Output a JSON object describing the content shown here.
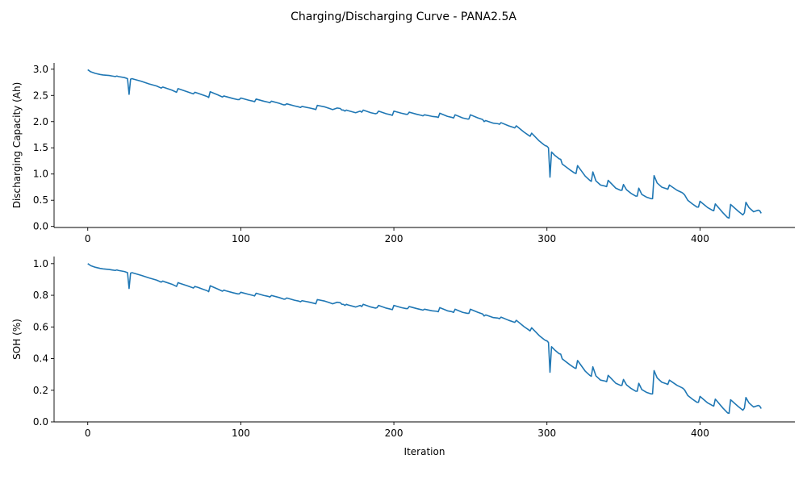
{
  "figure": {
    "suptitle": "Charging/Discharging Curve - PANA2.5A"
  },
  "chart_data": [
    {
      "type": "line",
      "title": "",
      "xlabel": "",
      "ylabel": "Discharging Capacity (Ah)",
      "xlim": [
        -22,
        462
      ],
      "ylim": [
        -0.02,
        3.12
      ],
      "xticks": [
        0,
        100,
        200,
        300,
        400
      ],
      "yticks": [
        0.0,
        0.5,
        1.0,
        1.5,
        2.0,
        2.5,
        3.0
      ],
      "ytick_labels": [
        "0.0",
        "0.5",
        "1.0",
        "1.5",
        "2.0",
        "2.5",
        "3.0"
      ],
      "show_xtick_labels": true,
      "grid": false,
      "line_color": "#1f77b4",
      "series": [
        {
          "x": [
            0,
            2,
            5,
            8,
            10,
            14,
            16,
            18,
            19,
            20,
            24,
            26,
            27,
            28,
            29,
            30,
            35,
            40,
            45,
            48,
            49,
            50,
            55,
            58,
            59,
            60,
            65,
            69,
            70,
            72,
            75,
            78,
            79,
            80,
            85,
            88,
            89,
            90,
            95,
            98,
            99,
            100,
            105,
            108,
            109,
            110,
            115,
            118,
            119,
            120,
            125,
            128,
            129,
            130,
            135,
            138,
            139,
            140,
            145,
            148,
            149,
            150,
            155,
            158,
            160,
            163,
            165,
            166,
            167,
            168,
            169,
            170,
            175,
            178,
            179,
            180,
            185,
            188,
            189,
            190,
            195,
            198,
            199,
            200,
            205,
            208,
            209,
            210,
            215,
            218,
            219,
            220,
            225,
            228,
            229,
            230,
            235,
            238,
            239,
            240,
            245,
            248,
            249,
            250,
            255,
            258,
            259,
            260,
            265,
            268,
            269,
            270,
            275,
            278,
            279,
            280,
            285,
            288,
            289,
            290,
            295,
            298,
            299,
            300,
            301,
            302,
            303,
            305,
            308,
            309,
            310,
            315,
            318,
            319,
            320,
            325,
            328,
            329,
            330,
            332,
            335,
            338,
            339,
            340,
            345,
            348,
            349,
            350,
            352,
            355,
            358,
            359,
            360,
            362,
            365,
            368,
            369,
            370,
            372,
            375,
            378,
            379,
            380,
            385,
            388,
            389,
            390,
            392,
            395,
            398,
            399,
            400,
            405,
            408,
            409,
            410,
            415,
            418,
            419,
            420,
            425,
            428,
            429,
            430,
            432,
            435,
            438,
            439,
            440
          ],
          "y": [
            2.99,
            2.95,
            2.92,
            2.9,
            2.89,
            2.88,
            2.87,
            2.86,
            2.87,
            2.86,
            2.84,
            2.82,
            2.52,
            2.81,
            2.82,
            2.81,
            2.77,
            2.72,
            2.68,
            2.64,
            2.66,
            2.65,
            2.6,
            2.56,
            2.63,
            2.62,
            2.57,
            2.53,
            2.56,
            2.54,
            2.51,
            2.48,
            2.46,
            2.57,
            2.51,
            2.47,
            2.49,
            2.48,
            2.44,
            2.42,
            2.42,
            2.45,
            2.41,
            2.39,
            2.38,
            2.43,
            2.39,
            2.37,
            2.36,
            2.39,
            2.35,
            2.32,
            2.32,
            2.34,
            2.3,
            2.28,
            2.27,
            2.29,
            2.26,
            2.24,
            2.23,
            2.31,
            2.28,
            2.25,
            2.23,
            2.26,
            2.25,
            2.22,
            2.22,
            2.2,
            2.22,
            2.21,
            2.17,
            2.2,
            2.18,
            2.22,
            2.17,
            2.15,
            2.16,
            2.2,
            2.15,
            2.13,
            2.12,
            2.2,
            2.16,
            2.14,
            2.14,
            2.18,
            2.14,
            2.12,
            2.11,
            2.13,
            2.1,
            2.09,
            2.08,
            2.16,
            2.1,
            2.08,
            2.07,
            2.13,
            2.07,
            2.05,
            2.05,
            2.13,
            2.07,
            2.04,
            2.0,
            2.02,
            1.97,
            1.96,
            1.95,
            1.98,
            1.92,
            1.89,
            1.88,
            1.92,
            1.8,
            1.74,
            1.72,
            1.78,
            1.63,
            1.56,
            1.54,
            1.53,
            1.5,
            0.94,
            1.42,
            1.36,
            1.29,
            1.28,
            1.19,
            1.08,
            1.02,
            1.01,
            1.16,
            0.96,
            0.88,
            0.86,
            1.04,
            0.87,
            0.79,
            0.77,
            0.76,
            0.88,
            0.73,
            0.69,
            0.69,
            0.8,
            0.7,
            0.63,
            0.58,
            0.58,
            0.73,
            0.61,
            0.56,
            0.53,
            0.53,
            0.97,
            0.83,
            0.75,
            0.72,
            0.71,
            0.79,
            0.69,
            0.65,
            0.63,
            0.6,
            0.5,
            0.43,
            0.37,
            0.37,
            0.48,
            0.36,
            0.31,
            0.3,
            0.43,
            0.26,
            0.17,
            0.16,
            0.42,
            0.29,
            0.22,
            0.26,
            0.46,
            0.36,
            0.28,
            0.31,
            0.3,
            0.25
          ]
        }
      ]
    },
    {
      "type": "line",
      "title": "",
      "xlabel": "Iteration",
      "ylabel": "SOH (%)",
      "xlim": [
        -22,
        462
      ],
      "ylim": [
        0.0,
        1.045
      ],
      "xticks": [
        0,
        100,
        200,
        300,
        400
      ],
      "yticks": [
        0.0,
        0.2,
        0.4,
        0.6,
        0.8,
        1.0
      ],
      "ytick_labels": [
        "0.0",
        "0.2",
        "0.4",
        "0.6",
        "0.8",
        "1.0"
      ],
      "show_xtick_labels": true,
      "grid": false,
      "line_color": "#1f77b4",
      "series": [
        {
          "x": [
            0,
            2,
            5,
            8,
            10,
            14,
            16,
            18,
            19,
            20,
            24,
            26,
            27,
            28,
            29,
            30,
            35,
            40,
            45,
            48,
            49,
            50,
            55,
            58,
            59,
            60,
            65,
            69,
            70,
            72,
            75,
            78,
            79,
            80,
            85,
            88,
            89,
            90,
            95,
            98,
            99,
            100,
            105,
            108,
            109,
            110,
            115,
            118,
            119,
            120,
            125,
            128,
            129,
            130,
            135,
            138,
            139,
            140,
            145,
            148,
            149,
            150,
            155,
            158,
            160,
            163,
            165,
            166,
            167,
            168,
            169,
            170,
            175,
            178,
            179,
            180,
            185,
            188,
            189,
            190,
            195,
            198,
            199,
            200,
            205,
            208,
            209,
            210,
            215,
            218,
            219,
            220,
            225,
            228,
            229,
            230,
            235,
            238,
            239,
            240,
            245,
            248,
            249,
            250,
            255,
            258,
            259,
            260,
            265,
            268,
            269,
            270,
            275,
            278,
            279,
            280,
            285,
            288,
            289,
            290,
            295,
            298,
            299,
            300,
            301,
            302,
            303,
            305,
            308,
            309,
            310,
            315,
            318,
            319,
            320,
            325,
            328,
            329,
            330,
            332,
            335,
            338,
            339,
            340,
            345,
            348,
            349,
            350,
            352,
            355,
            358,
            359,
            360,
            362,
            365,
            368,
            369,
            370,
            372,
            375,
            378,
            379,
            380,
            385,
            388,
            389,
            390,
            392,
            395,
            398,
            399,
            400,
            405,
            408,
            409,
            410,
            415,
            418,
            419,
            420,
            425,
            428,
            429,
            430,
            432,
            435,
            438,
            439,
            440
          ],
          "y": [
            1.0,
            0.987,
            0.977,
            0.97,
            0.967,
            0.963,
            0.96,
            0.957,
            0.96,
            0.957,
            0.95,
            0.943,
            0.843,
            0.94,
            0.943,
            0.94,
            0.926,
            0.91,
            0.896,
            0.883,
            0.89,
            0.886,
            0.87,
            0.856,
            0.88,
            0.876,
            0.86,
            0.846,
            0.856,
            0.85,
            0.839,
            0.829,
            0.823,
            0.86,
            0.839,
            0.826,
            0.833,
            0.829,
            0.816,
            0.809,
            0.809,
            0.819,
            0.806,
            0.799,
            0.796,
            0.813,
            0.799,
            0.793,
            0.789,
            0.799,
            0.786,
            0.776,
            0.776,
            0.783,
            0.769,
            0.763,
            0.759,
            0.766,
            0.756,
            0.749,
            0.746,
            0.773,
            0.763,
            0.753,
            0.746,
            0.756,
            0.753,
            0.743,
            0.743,
            0.736,
            0.743,
            0.739,
            0.726,
            0.736,
            0.729,
            0.743,
            0.726,
            0.719,
            0.722,
            0.736,
            0.719,
            0.712,
            0.709,
            0.736,
            0.722,
            0.716,
            0.716,
            0.729,
            0.716,
            0.709,
            0.706,
            0.712,
            0.702,
            0.699,
            0.696,
            0.722,
            0.702,
            0.696,
            0.692,
            0.712,
            0.692,
            0.686,
            0.686,
            0.712,
            0.692,
            0.682,
            0.669,
            0.676,
            0.659,
            0.656,
            0.652,
            0.662,
            0.642,
            0.632,
            0.629,
            0.642,
            0.602,
            0.582,
            0.575,
            0.595,
            0.545,
            0.522,
            0.515,
            0.512,
            0.502,
            0.314,
            0.475,
            0.455,
            0.431,
            0.428,
            0.398,
            0.361,
            0.341,
            0.338,
            0.388,
            0.321,
            0.294,
            0.288,
            0.348,
            0.291,
            0.264,
            0.258,
            0.254,
            0.294,
            0.244,
            0.231,
            0.231,
            0.268,
            0.234,
            0.211,
            0.194,
            0.194,
            0.244,
            0.204,
            0.187,
            0.177,
            0.177,
            0.324,
            0.278,
            0.251,
            0.241,
            0.237,
            0.264,
            0.231,
            0.217,
            0.211,
            0.201,
            0.167,
            0.144,
            0.124,
            0.124,
            0.161,
            0.12,
            0.104,
            0.1,
            0.144,
            0.087,
            0.057,
            0.054,
            0.14,
            0.097,
            0.074,
            0.087,
            0.154,
            0.12,
            0.094,
            0.104,
            0.1,
            0.084
          ]
        }
      ]
    }
  ]
}
